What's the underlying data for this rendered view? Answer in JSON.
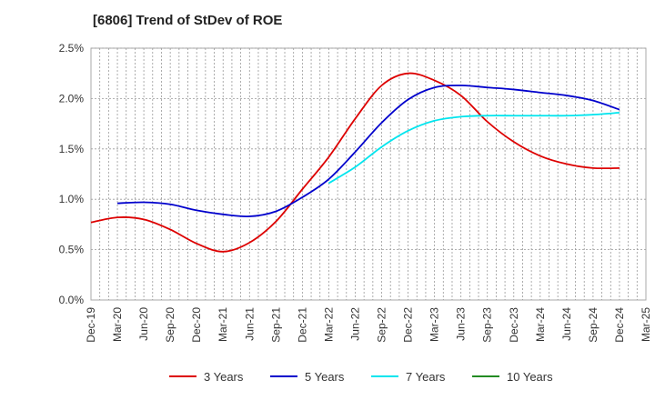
{
  "chart_data": {
    "type": "line",
    "title": "[6806]  Trend of StDev of ROE",
    "xlabel": "",
    "ylabel": "",
    "ylim": [
      0,
      2.5
    ],
    "yticks": [
      "0.0%",
      "0.5%",
      "1.0%",
      "1.5%",
      "2.0%",
      "2.5%"
    ],
    "ytick_values": [
      0,
      0.5,
      1.0,
      1.5,
      2.0,
      2.5
    ],
    "categories": [
      "Dec-19",
      "Mar-20",
      "Jun-20",
      "Sep-20",
      "Dec-20",
      "Mar-21",
      "Jun-21",
      "Sep-21",
      "Dec-21",
      "Mar-22",
      "Jun-22",
      "Sep-22",
      "Dec-22",
      "Mar-23",
      "Jun-23",
      "Sep-23",
      "Dec-23",
      "Mar-24",
      "Jun-24",
      "Sep-24",
      "Dec-24",
      "Mar-25"
    ],
    "grid": true,
    "legend_position": "bottom",
    "series": [
      {
        "name": "3 Years",
        "color": "#dd0000",
        "values": [
          0.77,
          0.82,
          0.8,
          0.7,
          0.56,
          0.48,
          0.57,
          0.78,
          1.1,
          1.42,
          1.8,
          2.13,
          2.25,
          2.18,
          2.03,
          1.77,
          1.57,
          1.43,
          1.35,
          1.31,
          1.31,
          null
        ]
      },
      {
        "name": "5 Years",
        "color": "#0000cc",
        "values": [
          null,
          0.96,
          0.97,
          0.95,
          0.89,
          0.85,
          0.83,
          0.88,
          1.02,
          1.2,
          1.47,
          1.76,
          1.99,
          2.11,
          2.13,
          2.11,
          2.09,
          2.06,
          2.03,
          1.98,
          1.89,
          null
        ]
      },
      {
        "name": "7 Years",
        "color": "#00e5ee",
        "values": [
          null,
          null,
          null,
          null,
          null,
          null,
          null,
          null,
          null,
          1.16,
          1.32,
          1.52,
          1.68,
          1.78,
          1.82,
          1.83,
          1.83,
          1.83,
          1.83,
          1.84,
          1.86,
          null
        ]
      },
      {
        "name": "10 Years",
        "color": "#228b22",
        "values": [
          null,
          null,
          null,
          null,
          null,
          null,
          null,
          null,
          null,
          null,
          null,
          null,
          null,
          null,
          null,
          null,
          null,
          null,
          null,
          null,
          null,
          null
        ]
      }
    ]
  }
}
